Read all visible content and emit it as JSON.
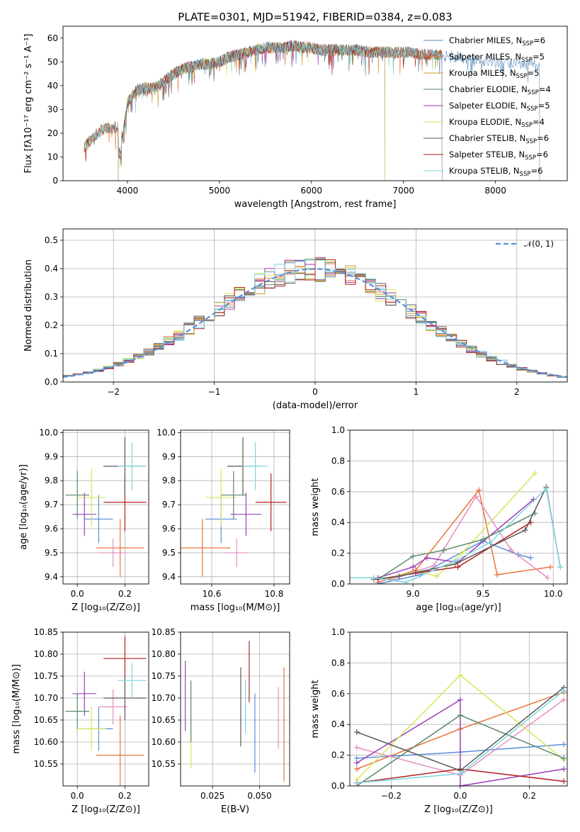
{
  "chart_data": [
    {
      "type": "line",
      "title": "PLATE=0301, MJD=51942, FIBERID=0384, z=0.083",
      "xlabel": "wavelength [Angstrom, rest frame]",
      "ylabel": "Flux [fλ10⁻¹⁷ erg cm⁻² s⁻¹ A⁻¹]",
      "xlim": [
        3300,
        8780
      ],
      "ylim": [
        0,
        65
      ],
      "xticks": [
        4000,
        5000,
        6000,
        7000,
        8000
      ],
      "yticks": [
        0,
        10,
        20,
        30,
        40,
        50,
        60
      ],
      "grid": false,
      "legend_position": "top-right",
      "spectrum_anchors": [
        [
          3530,
          14
        ],
        [
          3600,
          17
        ],
        [
          3700,
          21
        ],
        [
          3800,
          22
        ],
        [
          3900,
          23
        ],
        [
          3950,
          18
        ],
        [
          4000,
          33
        ],
        [
          4100,
          38
        ],
        [
          4200,
          39
        ],
        [
          4300,
          39
        ],
        [
          4400,
          42
        ],
        [
          4500,
          45
        ],
        [
          4600,
          47
        ],
        [
          4700,
          48
        ],
        [
          4800,
          49
        ],
        [
          4900,
          49
        ],
        [
          5000,
          50
        ],
        [
          5100,
          52
        ],
        [
          5200,
          53
        ],
        [
          5300,
          54
        ],
        [
          5400,
          55
        ],
        [
          5500,
          56
        ],
        [
          5600,
          56
        ],
        [
          5700,
          56
        ],
        [
          5800,
          57
        ],
        [
          5900,
          56
        ],
        [
          6000,
          56
        ],
        [
          6100,
          55
        ],
        [
          6200,
          55
        ],
        [
          6300,
          55
        ],
        [
          6400,
          55
        ],
        [
          6500,
          55
        ],
        [
          6600,
          54
        ],
        [
          6700,
          54
        ],
        [
          6800,
          54
        ],
        [
          6900,
          54
        ],
        [
          7000,
          54
        ],
        [
          7100,
          54
        ],
        [
          7200,
          53
        ],
        [
          7300,
          53
        ],
        [
          7400,
          53
        ],
        [
          7500,
          52
        ],
        [
          7600,
          52
        ],
        [
          7700,
          51
        ],
        [
          7800,
          51
        ],
        [
          7900,
          50
        ],
        [
          8000,
          50
        ],
        [
          8100,
          50
        ],
        [
          8200,
          50
        ],
        [
          8300,
          49
        ],
        [
          8400,
          49
        ],
        [
          8500,
          49
        ]
      ],
      "series": [
        {
          "name": "Chabrier MILES, N",
          "sub": "SSP",
          "eq": "=6",
          "color": "#5b8cba",
          "xmin": 3900,
          "xmax": 8480
        },
        {
          "name": "Salpeter MILES, N",
          "sub": "SSP",
          "eq": "=5",
          "color": "#e8733a",
          "xmin": 3530,
          "xmax": 7420
        },
        {
          "name": "Kroupa MILES, N",
          "sub": "SSP",
          "eq": "=5",
          "color": "#c89a2a",
          "xmin": 3530,
          "xmax": 7420
        },
        {
          "name": "Chabrier ELODIE, N",
          "sub": "SSP",
          "eq": "=4",
          "color": "#5a8a6a",
          "xmin": 3900,
          "xmax": 6800
        },
        {
          "name": "Salpeter ELODIE, N",
          "sub": "SSP",
          "eq": "=5",
          "color": "#9b3fb5",
          "xmin": 3900,
          "xmax": 6800
        },
        {
          "name": "Kroupa ELODIE, N",
          "sub": "SSP",
          "eq": "=4",
          "color": "#d6e65a",
          "xmin": 3900,
          "xmax": 6800
        },
        {
          "name": "Chabrier STELIB, N",
          "sub": "SSP",
          "eq": "=6",
          "color": "#5a5a5a",
          "xmin": 3530,
          "xmax": 7420
        },
        {
          "name": "Salpeter STELIB, N",
          "sub": "SSP",
          "eq": "=6",
          "color": "#b22222",
          "xmin": 3530,
          "xmax": 7420
        },
        {
          "name": "Kroupa STELIB, N",
          "sub": "SSP",
          "eq": "=6",
          "color": "#7fd6e0",
          "xmin": 3530,
          "xmax": 7420
        }
      ]
    },
    {
      "type": "line",
      "xlabel": "(data-model)/error",
      "ylabel": "Normed distribution",
      "xlim": [
        -2.5,
        2.5
      ],
      "ylim": [
        0,
        0.54
      ],
      "xticks": [
        -2,
        -1,
        0,
        1,
        2
      ],
      "yticks": [
        0.0,
        0.1,
        0.2,
        0.3,
        0.4,
        0.5
      ],
      "grid": true,
      "legend_position": "top-right",
      "reference_curve": {
        "name": "𝒩(0, 1)",
        "color": "#5b8cdc"
      }
    },
    {
      "type": "scatter",
      "xlabel": "Z [log₁₀(Z/Z⊙)]",
      "ylabel": "age  [log₁₀(age/yr)]",
      "xlim": [
        -0.06,
        0.3
      ],
      "ylim": [
        9.37,
        10.01
      ],
      "xticks": [
        0.0,
        0.2
      ],
      "yticks": [
        9.4,
        9.5,
        9.6,
        9.7,
        9.8,
        9.9,
        10.0
      ],
      "grid": true,
      "points": [
        {
          "x": 0.18,
          "xerr": 0.1,
          "y": 9.52,
          "yerr": 0.12,
          "color": "#e8733a"
        },
        {
          "x": 0.09,
          "xerr": 0.06,
          "y": 9.64,
          "yerr": 0.1,
          "color": "#5b8cdc"
        },
        {
          "x": 0.15,
          "xerr": 0.06,
          "y": 9.5,
          "yerr": 0.06,
          "color": "#e58fc0"
        },
        {
          "x": 0.03,
          "xerr": 0.05,
          "y": 9.66,
          "yerr": 0.09,
          "color": "#9b3fb5"
        },
        {
          "x": 0.06,
          "xerr": 0.06,
          "y": 9.73,
          "yerr": 0.12,
          "color": "#d6e65a"
        },
        {
          "x": 0.0,
          "xerr": 0.05,
          "y": 9.74,
          "yerr": 0.1,
          "color": "#5a8a6a"
        },
        {
          "x": 0.2,
          "xerr": 0.09,
          "y": 9.71,
          "yerr": 0.12,
          "color": "#b22222"
        },
        {
          "x": 0.2,
          "xerr": 0.09,
          "y": 9.86,
          "yerr": 0.12,
          "color": "#5a5a5a"
        },
        {
          "x": 0.23,
          "xerr": 0.06,
          "y": 9.86,
          "yerr": 0.1,
          "color": "#7fd6e0"
        }
      ]
    },
    {
      "type": "scatter",
      "xlabel": "mass [log₁₀(M/M⊙)]",
      "xlim": [
        10.5,
        10.85
      ],
      "ylim": [
        9.37,
        10.01
      ],
      "xticks": [
        10.6,
        10.8
      ],
      "yticks": [
        9.4,
        9.5,
        9.6,
        9.7,
        9.8,
        9.9,
        10.0
      ],
      "grid": true,
      "points": [
        {
          "x": 10.57,
          "xerr": 0.09,
          "y": 9.52,
          "yerr": 0.12,
          "color": "#e8733a"
        },
        {
          "x": 10.63,
          "xerr": 0.05,
          "y": 9.64,
          "yerr": 0.1,
          "color": "#5b8cdc"
        },
        {
          "x": 10.68,
          "xerr": 0.04,
          "y": 9.5,
          "yerr": 0.06,
          "color": "#e58fc0"
        },
        {
          "x": 10.71,
          "xerr": 0.05,
          "y": 9.66,
          "yerr": 0.09,
          "color": "#9b3fb5"
        },
        {
          "x": 10.63,
          "xerr": 0.05,
          "y": 9.73,
          "yerr": 0.12,
          "color": "#d6e65a"
        },
        {
          "x": 10.67,
          "xerr": 0.04,
          "y": 9.74,
          "yerr": 0.1,
          "color": "#5a8a6a"
        },
        {
          "x": 10.79,
          "xerr": 0.05,
          "y": 9.71,
          "yerr": 0.12,
          "color": "#b22222"
        },
        {
          "x": 10.7,
          "xerr": 0.05,
          "y": 9.86,
          "yerr": 0.12,
          "color": "#5a5a5a"
        },
        {
          "x": 10.74,
          "xerr": 0.04,
          "y": 9.86,
          "yerr": 0.1,
          "color": "#7fd6e0"
        }
      ]
    },
    {
      "type": "line",
      "xlabel": "age  [log₁₀(age/yr)]",
      "ylabel": "mass weight",
      "xlim": [
        8.55,
        10.1
      ],
      "ylim": [
        0,
        1
      ],
      "xticks": [
        9.0,
        9.5,
        10.0
      ],
      "yticks": [
        0.0,
        0.2,
        0.4,
        0.6,
        0.8,
        1.0
      ],
      "grid": true,
      "series": [
        {
          "color": "#e8733a",
          "x": [
            8.75,
            9.02,
            9.47,
            9.6,
            9.98
          ],
          "y": [
            0.01,
            0.09,
            0.61,
            0.06,
            0.11
          ]
        },
        {
          "color": "#5b8cdc",
          "x": [
            8.75,
            9.05,
            9.5,
            9.75,
            9.84
          ],
          "y": [
            0.0,
            0.06,
            0.28,
            0.19,
            0.17
          ]
        },
        {
          "color": "#e58fc0",
          "x": [
            8.85,
            9.15,
            9.45,
            9.7,
            9.96
          ],
          "y": [
            0.03,
            0.12,
            0.57,
            0.22,
            0.04
          ]
        },
        {
          "color": "#9b3fb5",
          "x": [
            8.75,
            9.0,
            9.1,
            9.32,
            9.86
          ],
          "y": [
            0.04,
            0.11,
            0.17,
            0.14,
            0.55
          ]
        },
        {
          "color": "#d6e65a",
          "x": [
            8.75,
            9.05,
            9.17,
            9.35,
            9.87
          ],
          "y": [
            0.03,
            0.08,
            0.05,
            0.2,
            0.72
          ]
        },
        {
          "color": "#5a8a6a",
          "x": [
            8.75,
            9.0,
            9.22,
            9.5,
            9.87
          ],
          "y": [
            0.03,
            0.18,
            0.22,
            0.29,
            0.46
          ]
        },
        {
          "color": "#b22222",
          "x": [
            8.75,
            9.02,
            9.32,
            9.84
          ],
          "y": [
            0.03,
            0.07,
            0.11,
            0.4
          ]
        },
        {
          "color": "#5a5a5a",
          "x": [
            8.72,
            8.9,
            9.3,
            9.8,
            9.95,
            10.05
          ],
          "y": [
            0.03,
            0.05,
            0.13,
            0.35,
            0.63,
            0.11
          ]
        },
        {
          "color": "#7fd6e0",
          "x": [
            8.55,
            8.72,
            8.95,
            9.3,
            9.55,
            9.95,
            10.05
          ],
          "y": [
            0.04,
            0.04,
            0.01,
            0.15,
            0.27,
            0.62,
            0.11
          ]
        }
      ]
    },
    {
      "type": "scatter",
      "xlabel": "Z [log₁₀(Z/Z⊙)]",
      "ylabel": "mass [log₁₀(M/M⊙)]",
      "xlim": [
        -0.06,
        0.3
      ],
      "ylim": [
        10.5,
        10.85
      ],
      "xticks": [
        0.0,
        0.2
      ],
      "yticks": [
        10.55,
        10.6,
        10.65,
        10.7,
        10.75,
        10.8,
        10.85
      ],
      "grid": true,
      "points": [
        {
          "x": 0.18,
          "xerr": 0.1,
          "y": 10.57,
          "yerr": 0.09,
          "color": "#e8733a"
        },
        {
          "x": 0.09,
          "xerr": 0.06,
          "y": 10.63,
          "yerr": 0.05,
          "color": "#5b8cdc"
        },
        {
          "x": 0.15,
          "xerr": 0.06,
          "y": 10.68,
          "yerr": 0.04,
          "color": "#e58fc0"
        },
        {
          "x": 0.03,
          "xerr": 0.05,
          "y": 10.71,
          "yerr": 0.05,
          "color": "#9b3fb5"
        },
        {
          "x": 0.06,
          "xerr": 0.06,
          "y": 10.63,
          "yerr": 0.05,
          "color": "#d6e65a"
        },
        {
          "x": 0.0,
          "xerr": 0.05,
          "y": 10.67,
          "yerr": 0.04,
          "color": "#5a8a6a"
        },
        {
          "x": 0.2,
          "xerr": 0.09,
          "y": 10.79,
          "yerr": 0.05,
          "color": "#b22222"
        },
        {
          "x": 0.2,
          "xerr": 0.09,
          "y": 10.7,
          "yerr": 0.05,
          "color": "#5a5a5a"
        },
        {
          "x": 0.23,
          "xerr": 0.06,
          "y": 10.74,
          "yerr": 0.04,
          "color": "#7fd6e0"
        }
      ]
    },
    {
      "type": "scatter",
      "xlabel": "E(B-V)",
      "xlim": [
        0.008,
        0.066
      ],
      "ylim": [
        10.5,
        10.85
      ],
      "xticks": [
        0.025,
        0.05
      ],
      "yticks": [
        10.55,
        10.6,
        10.65,
        10.7,
        10.75,
        10.8,
        10.85
      ],
      "grid": true,
      "points": [
        {
          "x": 0.063,
          "y": 10.64,
          "yerr": 0.13,
          "color": "#e8733a"
        },
        {
          "x": 0.0475,
          "y": 10.62,
          "yerr": 0.09,
          "color": "#5b8cdc"
        },
        {
          "x": 0.06,
          "y": 10.655,
          "yerr": 0.07,
          "color": "#e58fc0"
        },
        {
          "x": 0.0105,
          "y": 10.705,
          "yerr": 0.08,
          "color": "#9b3fb5"
        },
        {
          "x": 0.0135,
          "y": 10.6,
          "yerr": 0.06,
          "color": "#d6e65a"
        },
        {
          "x": 0.0135,
          "y": 10.67,
          "yerr": 0.07,
          "color": "#5a8a6a"
        },
        {
          "x": 0.0445,
          "y": 10.76,
          "yerr": 0.07,
          "color": "#b22222"
        },
        {
          "x": 0.04,
          "y": 10.68,
          "yerr": 0.09,
          "color": "#5a5a5a"
        },
        {
          "x": 0.0425,
          "y": 10.68,
          "yerr": 0.06,
          "color": "#7fd6e0"
        }
      ]
    },
    {
      "type": "line",
      "xlabel": "Z [log₁₀(Z/Z⊙)]",
      "ylabel": "mass weight",
      "xlim": [
        -0.32,
        0.31
      ],
      "ylim": [
        0,
        1
      ],
      "xticks": [
        -0.2,
        0.0,
        0.2
      ],
      "yticks": [
        0.0,
        0.2,
        0.4,
        0.6,
        0.8,
        1.0
      ],
      "grid": true,
      "series": [
        {
          "color": "#e8733a",
          "x": [
            -0.3,
            0.0,
            0.3
          ],
          "y": [
            0.11,
            0.37,
            0.61
          ]
        },
        {
          "color": "#5b8cdc",
          "x": [
            -0.3,
            0.0,
            0.3
          ],
          "y": [
            0.18,
            0.22,
            0.27
          ]
        },
        {
          "color": "#e58fc0",
          "x": [
            -0.3,
            0.0,
            0.3
          ],
          "y": [
            0.25,
            0.07,
            0.56
          ]
        },
        {
          "color": "#9b3fb5",
          "x": [
            -0.3,
            0.0,
            0.0,
            0.3
          ],
          "y": [
            0.15,
            0.56,
            0.0,
            0.11
          ]
        },
        {
          "color": "#d6e65a",
          "x": [
            -0.3,
            0.0,
            0.3
          ],
          "y": [
            0.04,
            0.72,
            0.17
          ]
        },
        {
          "color": "#5a8a6a",
          "x": [
            -0.3,
            0.0,
            0.3
          ],
          "y": [
            0.0,
            0.46,
            0.18
          ]
        },
        {
          "color": "#b22222",
          "x": [
            -0.3,
            0.0,
            0.3
          ],
          "y": [
            0.02,
            0.11,
            0.03
          ]
        },
        {
          "color": "#5a5a5a",
          "x": [
            -0.3,
            0.0,
            0.3
          ],
          "y": [
            0.35,
            0.1,
            0.64
          ]
        },
        {
          "color": "#7fd6e0",
          "x": [
            -0.3,
            0.0,
            0.3
          ],
          "y": [
            0.02,
            0.08,
            0.62
          ]
        }
      ]
    }
  ]
}
